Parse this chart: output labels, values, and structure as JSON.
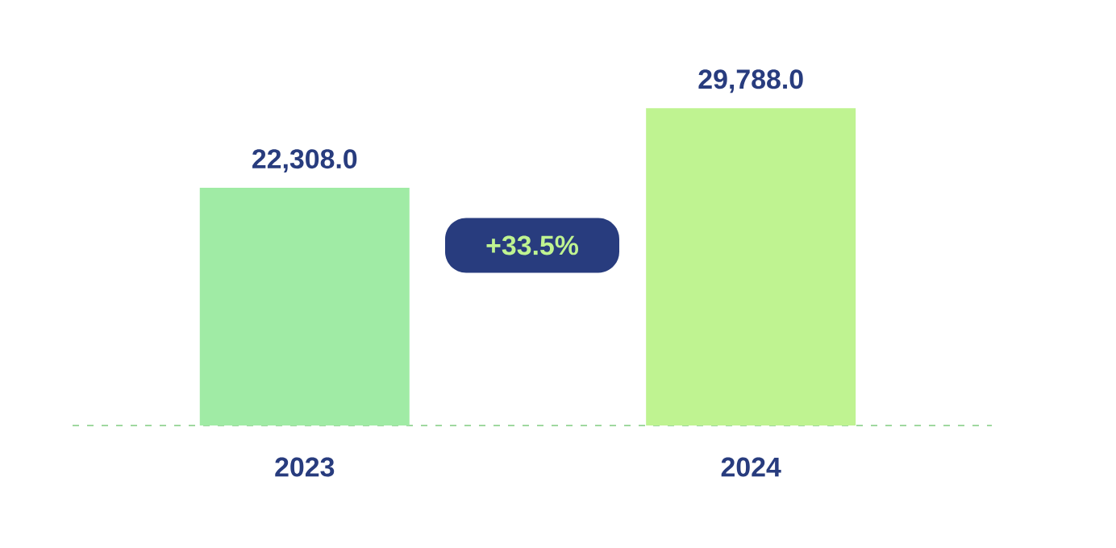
{
  "chart_data": {
    "type": "bar",
    "categories": [
      "2023",
      "2024"
    ],
    "values": [
      22308.0,
      29788.0
    ],
    "colors": [
      "#a0eba5",
      "#bff391"
    ],
    "value_labels": [
      "22,308.0",
      "29,788.0"
    ],
    "annotations": [
      "+33.5%"
    ]
  }
}
